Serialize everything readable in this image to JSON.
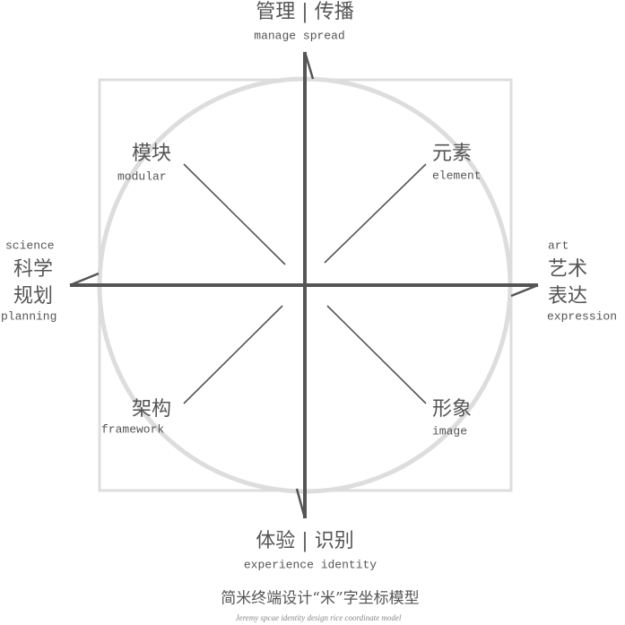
{
  "axes": {
    "top": {
      "label": "管理 | 传播",
      "sublabel": "manage spread"
    },
    "bottom": {
      "label": "体验 | 识别",
      "sublabel": "experience identity"
    },
    "left": {
      "over": "science",
      "line1": "科学",
      "line2": "规划",
      "under": "planning"
    },
    "right": {
      "over": "art",
      "line1": "艺术",
      "line2": "表达",
      "under": "expression"
    }
  },
  "quadrants": {
    "top_left": {
      "label": "模块",
      "sublabel": "modular"
    },
    "top_right": {
      "label": "元素",
      "sublabel": "element"
    },
    "bottom_left": {
      "label": "架构",
      "sublabel": "framework"
    },
    "bottom_right": {
      "label": "形象",
      "sublabel": "image"
    }
  },
  "caption": {
    "title": "简米终端设计“米”字坐标模型",
    "subtitle": "Jeremy spcae identity design rice coordinate model"
  }
}
